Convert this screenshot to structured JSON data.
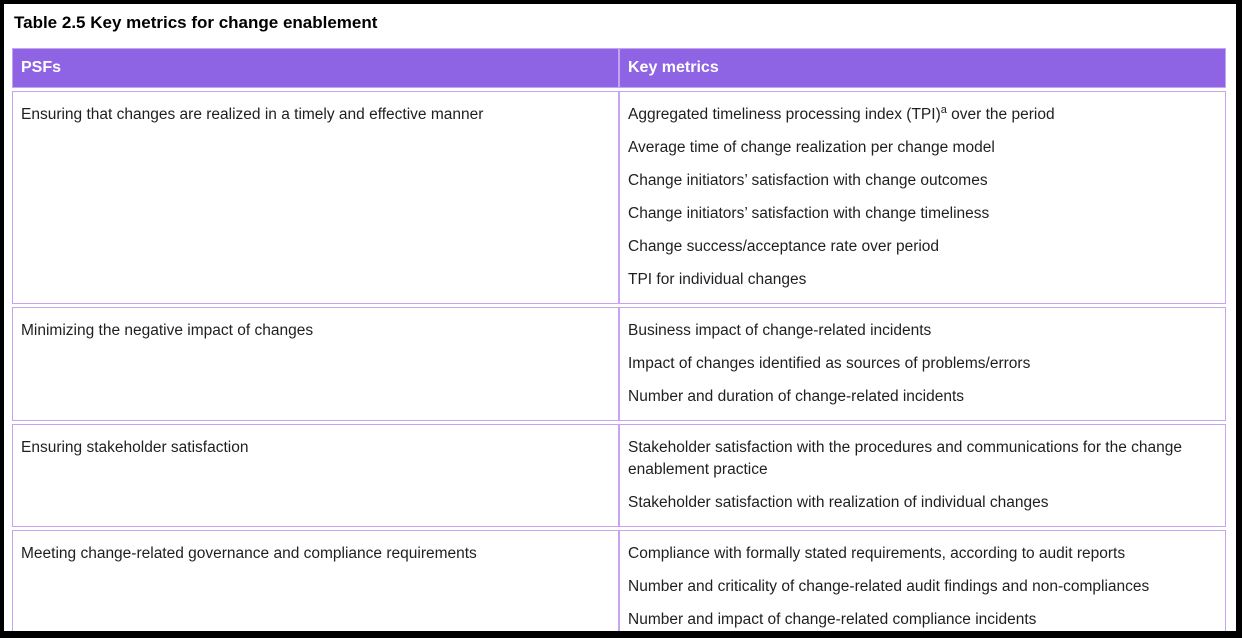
{
  "title": "Table 2.5 Key metrics for change enablement",
  "colors": {
    "header_bg": "#8e63e4",
    "cell_border": "#c6a4ef",
    "header_text": "#ffffff",
    "body_text": "#1f1f1f",
    "frame_border": "#000000"
  },
  "table": {
    "columns": [
      "PSFs",
      "Key metrics"
    ],
    "rows": [
      {
        "psf": "Ensuring that changes are realized in a timely and effective manner",
        "metrics": [
          {
            "pre": "Aggregated timeliness processing index (TPI)",
            "sup": "a",
            "post": " over the period"
          },
          {
            "pre": "Average time of change realization per change model"
          },
          {
            "pre": "Change initiators’ satisfaction with change outcomes"
          },
          {
            "pre": "Change initiators’ satisfaction with change timeliness"
          },
          {
            "pre": "Change success/acceptance rate over period"
          },
          {
            "pre": "TPI for individual changes"
          }
        ]
      },
      {
        "psf": "Minimizing the negative impact of changes",
        "metrics": [
          {
            "pre": "Business impact of change-related incidents"
          },
          {
            "pre": "Impact of changes identified as sources of problems/errors"
          },
          {
            "pre": "Number and duration of change-related incidents"
          }
        ]
      },
      {
        "psf": "Ensuring stakeholder satisfaction",
        "metrics": [
          {
            "pre": "Stakeholder satisfaction with the procedures and communications for the change enablement practice"
          },
          {
            "pre": "Stakeholder satisfaction with realization of individual changes"
          }
        ]
      },
      {
        "psf": "Meeting change-related governance and compliance requirements",
        "metrics": [
          {
            "pre": "Compliance with formally stated requirements, according to audit reports"
          },
          {
            "pre": "Number and criticality of change-related audit findings and non-compliances"
          },
          {
            "pre": "Number and impact of change-related compliance incidents"
          }
        ]
      }
    ]
  }
}
